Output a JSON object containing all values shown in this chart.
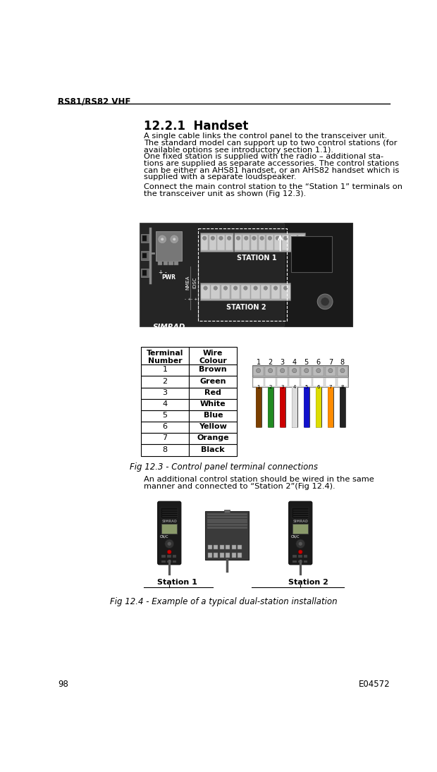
{
  "bg_color": "#ffffff",
  "header_text": "RS81/RS82 VHF",
  "page_num": "98",
  "doc_num": "E04572",
  "title": "12.2.1  Handset",
  "para1_lines": [
    "A single cable links the control panel to the transceiver unit.",
    "The standard model can support up to two control stations (for",
    "available options see introductory section 1.1).",
    "One fixed station is supplied with the radio – additional sta-",
    "tions are supplied as separate accessories. The control stations",
    "can be either an AHS81 handset, or an AHS82 handset which is",
    "supplied with a separate loudspeaker."
  ],
  "para2_lines": [
    "Connect the main control station to the “Station 1” terminals on",
    "the transceiver unit as shown (Fig 12.3)."
  ],
  "fig1_caption": "Fig 12.3 - Control panel terminal connections",
  "para3_lines": [
    "An additional control station should be wired in the same",
    "manner and connected to “Station 2”(Fig 12.4)."
  ],
  "table_rows": [
    [
      "1",
      "Brown"
    ],
    [
      "2",
      "Green"
    ],
    [
      "3",
      "Red"
    ],
    [
      "4",
      "White"
    ],
    [
      "5",
      "Blue"
    ],
    [
      "6",
      "Yellow"
    ],
    [
      "7",
      "Orange"
    ],
    [
      "8",
      "Black"
    ]
  ],
  "wire_colors": [
    "#7B3F00",
    "#228B22",
    "#CC0000",
    "#DDDDDD",
    "#1111CC",
    "#DDDD00",
    "#FF8C00",
    "#222222"
  ],
  "fig2_caption": "Fig 12.4 - Example of a typical dual-station installation",
  "station1_label": "Station 1",
  "station2_label": "Station 2",
  "panel_dark": "#252525",
  "panel_mid": "#3a3a3a",
  "panel_light": "#555555",
  "terminal_gray": "#aaaaaa",
  "terminal_light": "#cccccc"
}
